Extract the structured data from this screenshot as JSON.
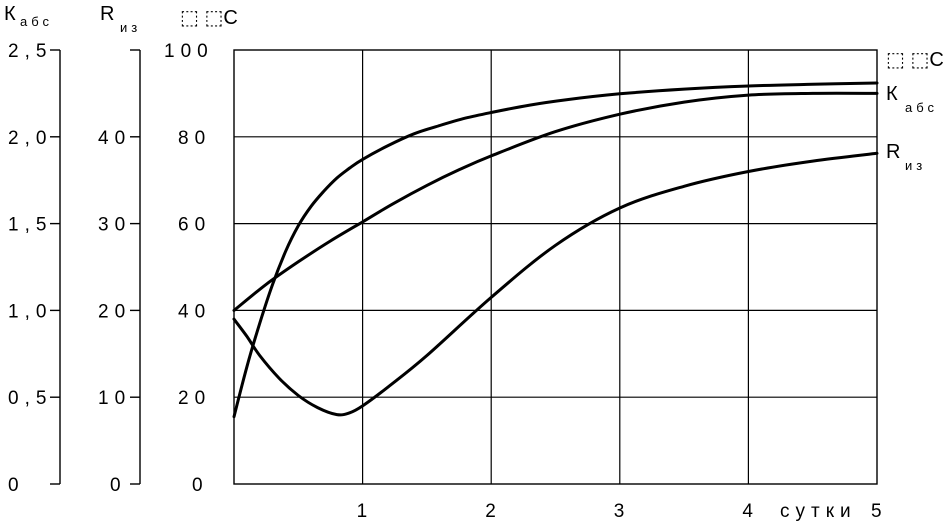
{
  "chart_data": {
    "type": "line",
    "axes": {
      "k_abs": {
        "label": "К",
        "sub": "абс",
        "ticks": [
          "2,5",
          "2,0",
          "1,5",
          "1,0",
          "0,5",
          "0"
        ],
        "ylim": [
          0,
          2.5
        ]
      },
      "r_iz": {
        "label": "R",
        "sub": "из",
        "ticks": [
          "40",
          "30",
          "20",
          "10",
          "0"
        ],
        "ylim": [
          0,
          50
        ]
      },
      "temp": {
        "label": "⬚ ⬚С",
        "ticks": [
          "100",
          "80",
          "60",
          "40",
          "20",
          "0"
        ],
        "ylim": [
          0,
          100
        ]
      },
      "x": {
        "label": "сутки",
        "ticks": [
          "1",
          "2",
          "3",
          "4",
          "5"
        ],
        "xlim": [
          0,
          5
        ]
      }
    },
    "grid": true,
    "series": [
      {
        "name": "⬚ ⬚С",
        "axis": "temp",
        "label_sub": "",
        "x": [
          0,
          0.1,
          0.2,
          0.3,
          0.4,
          0.5,
          0.6,
          0.7,
          0.8,
          0.9,
          1.0,
          1.2,
          1.4,
          1.6,
          1.8,
          2.0,
          2.3,
          2.6,
          3.0,
          3.5,
          4.0,
          4.5,
          5.0
        ],
        "values": [
          15.5,
          27,
          37,
          46,
          53.5,
          59.5,
          64,
          67.5,
          70.5,
          72.8,
          74.8,
          78,
          80.7,
          82.6,
          84.3,
          85.6,
          87.3,
          88.6,
          89.9,
          91,
          91.7,
          92.1,
          92.4
        ]
      },
      {
        "name": "К",
        "axis": "k_abs",
        "label_sub": "абс",
        "x": [
          0,
          0.25,
          0.5,
          0.75,
          1.0,
          1.25,
          1.5,
          1.75,
          2.0,
          2.5,
          3.0,
          3.5,
          4.0,
          4.5,
          5.0
        ],
        "values": [
          1.0,
          1.15,
          1.28,
          1.4,
          1.51,
          1.62,
          1.72,
          1.81,
          1.89,
          2.03,
          2.13,
          2.2,
          2.24,
          2.25,
          2.25
        ]
      },
      {
        "name": "R",
        "axis": "r_iz",
        "label_sub": "из",
        "x": [
          0,
          0.1,
          0.2,
          0.35,
          0.5,
          0.65,
          0.8,
          0.9,
          1.0,
          1.2,
          1.5,
          2.0,
          2.5,
          3.0,
          3.5,
          4.0,
          4.5,
          5.0
        ],
        "values": [
          19,
          17,
          14.8,
          12.2,
          10.2,
          8.8,
          8.0,
          8.2,
          9.0,
          11.2,
          14.8,
          21.5,
          27.5,
          31.8,
          34.3,
          36.0,
          37.2,
          38.1
        ]
      }
    ]
  }
}
